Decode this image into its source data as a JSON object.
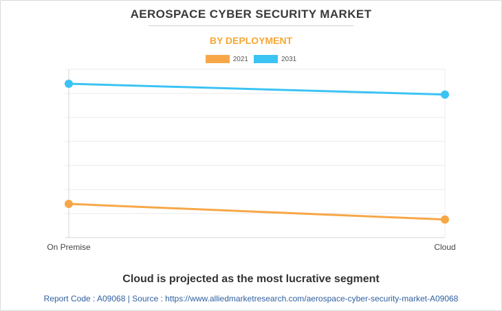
{
  "chart_data": {
    "type": "line",
    "title": "AEROSPACE CYBER SECURITY MARKET",
    "subtitle": "BY DEPLOYMENT",
    "categories": [
      "On Premise",
      "Cloud"
    ],
    "series": [
      {
        "name": "2021",
        "values": [
          28,
          15
        ],
        "color": "#f7a747"
      },
      {
        "name": "2031",
        "values": [
          128,
          119
        ],
        "color": "#3bc3f4"
      }
    ],
    "ylim": [
      0,
      140
    ],
    "grid": true,
    "legend_position": "top-center",
    "xlabel": "",
    "ylabel": ""
  },
  "caption": "Cloud is projected as the most lucrative segment",
  "source": "Report Code : A09068  |  Source : https://www.alliedmarketresearch.com/aerospace-cyber-security-market-A09068"
}
